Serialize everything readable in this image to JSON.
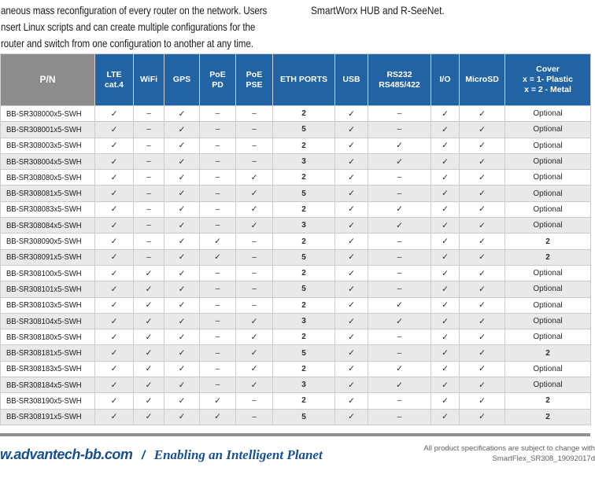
{
  "intro": {
    "left_lines": [
      "aneous mass reconfiguration of every router on the network. Users",
      "nsert Linux scripts and can create multiple configurations for the",
      "router and switch from one configuration to another at any time."
    ],
    "right_line": "SmartWorx HUB and R-SeeNet."
  },
  "table": {
    "check_glyph": "✓",
    "dash_glyph": "–",
    "columns": [
      {
        "id": "pn",
        "label": "P/N"
      },
      {
        "id": "lte",
        "label": "LTE\ncat.4"
      },
      {
        "id": "wifi",
        "label": "WiFi"
      },
      {
        "id": "gps",
        "label": "GPS"
      },
      {
        "id": "poe-pd",
        "label": "PoE\nPD"
      },
      {
        "id": "poe-pse",
        "label": "PoE\nPSE"
      },
      {
        "id": "eth-ports",
        "label": "ETH PORTS"
      },
      {
        "id": "usb",
        "label": "USB"
      },
      {
        "id": "rs232",
        "label": "RS232\nRS485/422"
      },
      {
        "id": "io",
        "label": "I/O"
      },
      {
        "id": "microsd",
        "label": "MicroSD"
      },
      {
        "id": "cover",
        "label": "Cover\nx = 1- Plastic\nx = 2 - Metal"
      }
    ],
    "rows": [
      [
        "BB-SR308000x5-SWH",
        "check",
        "dash",
        "check",
        "dash",
        "dash",
        "2",
        "check",
        "dash",
        "check",
        "check",
        "Optional"
      ],
      [
        "BB-SR308001x5-SWH",
        "check",
        "dash",
        "check",
        "dash",
        "dash",
        "5",
        "check",
        "dash",
        "check",
        "check",
        "Optional"
      ],
      [
        "BB-SR308003x5-SWH",
        "check",
        "dash",
        "check",
        "dash",
        "dash",
        "2",
        "check",
        "check",
        "check",
        "check",
        "Optional"
      ],
      [
        "BB-SR308004x5-SWH",
        "check",
        "dash",
        "check",
        "dash",
        "dash",
        "3",
        "check",
        "check",
        "check",
        "check",
        "Optional"
      ],
      [
        "BB-SR308080x5-SWH",
        "check",
        "dash",
        "check",
        "dash",
        "check",
        "2",
        "check",
        "dash",
        "check",
        "check",
        "Optional"
      ],
      [
        "BB-SR308081x5-SWH",
        "check",
        "dash",
        "check",
        "dash",
        "check",
        "5",
        "check",
        "dash",
        "check",
        "check",
        "Optional"
      ],
      [
        "BB-SR308083x5-SWH",
        "check",
        "dash",
        "check",
        "dash",
        "check",
        "2",
        "check",
        "check",
        "check",
        "check",
        "Optional"
      ],
      [
        "BB-SR308084x5-SWH",
        "check",
        "dash",
        "check",
        "dash",
        "check",
        "3",
        "check",
        "check",
        "check",
        "check",
        "Optional"
      ],
      [
        "BB-SR308090x5-SWH",
        "check",
        "dash",
        "check",
        "check",
        "dash",
        "2",
        "check",
        "dash",
        "check",
        "check",
        "2"
      ],
      [
        "BB-SR308091x5-SWH",
        "check",
        "dash",
        "check",
        "check",
        "dash",
        "5",
        "check",
        "dash",
        "check",
        "check",
        "2"
      ],
      [
        "BB-SR308100x5-SWH",
        "check",
        "check",
        "check",
        "dash",
        "dash",
        "2",
        "check",
        "dash",
        "check",
        "check",
        "Optional"
      ],
      [
        "BB-SR308101x5-SWH",
        "check",
        "check",
        "check",
        "dash",
        "dash",
        "5",
        "check",
        "dash",
        "check",
        "check",
        "Optional"
      ],
      [
        "BB-SR308103x5-SWH",
        "check",
        "check",
        "check",
        "dash",
        "dash",
        "2",
        "check",
        "check",
        "check",
        "check",
        "Optional"
      ],
      [
        "BB-SR308104x5-SWH",
        "check",
        "check",
        "check",
        "dash",
        "check",
        "3",
        "check",
        "check",
        "check",
        "check",
        "Optional"
      ],
      [
        "BB-SR308180x5-SWH",
        "check",
        "check",
        "check",
        "dash",
        "check",
        "2",
        "check",
        "dash",
        "check",
        "check",
        "Optional"
      ],
      [
        "BB-SR308181x5-SWH",
        "check",
        "check",
        "check",
        "dash",
        "check",
        "5",
        "check",
        "dash",
        "check",
        "check",
        "2"
      ],
      [
        "BB-SR308183x5-SWH",
        "check",
        "check",
        "check",
        "dash",
        "check",
        "2",
        "check",
        "check",
        "check",
        "check",
        "Optional"
      ],
      [
        "BB-SR308184x5-SWH",
        "check",
        "check",
        "check",
        "dash",
        "check",
        "3",
        "check",
        "check",
        "check",
        "check",
        "Optional"
      ],
      [
        "BB-SR308190x5-SWH",
        "check",
        "check",
        "check",
        "check",
        "dash",
        "2",
        "check",
        "dash",
        "check",
        "check",
        "2"
      ],
      [
        "BB-SR308191x5-SWH",
        "check",
        "check",
        "check",
        "check",
        "dash",
        "5",
        "check",
        "dash",
        "check",
        "check",
        "2"
      ]
    ]
  },
  "footer": {
    "website": "w.advantech-bb.com",
    "separator": "/",
    "tagline": "Enabling an Intelligent Planet",
    "note_line1": "All product specifications are subject to change with",
    "note_line2": "SmartFlex_SR308_19092017d"
  },
  "colors": {
    "header_blue": "#2264A3",
    "header_gray": "#8C8C8C",
    "row_stripe": "#E9E9E9",
    "rule_gray": "#909090",
    "footer_blue": "#1A4F8E",
    "note_gray": "#606060"
  }
}
